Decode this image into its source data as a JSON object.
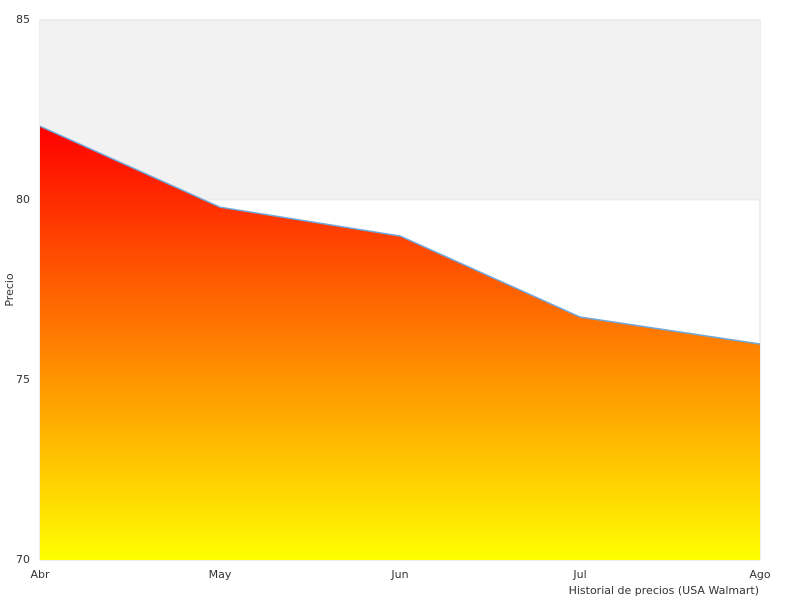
{
  "chart_data": {
    "type": "area",
    "y_label": "Precio",
    "x_label": "Historial de precios (USA Walmart)",
    "categories": [
      "Abr",
      "May",
      "Jun",
      "Jul",
      "Ago"
    ],
    "values": [
      82.05,
      79.8,
      79.0,
      76.75,
      76.0
    ],
    "ylim": [
      70,
      85
    ],
    "yticks": [
      70,
      75,
      80,
      85
    ],
    "line_color": "#6fa8dc",
    "fill_gradient": [
      "#ff0000",
      "#ffff00"
    ],
    "alternate_band_color": "#f2f2f2",
    "border_color": "#dddddd"
  }
}
